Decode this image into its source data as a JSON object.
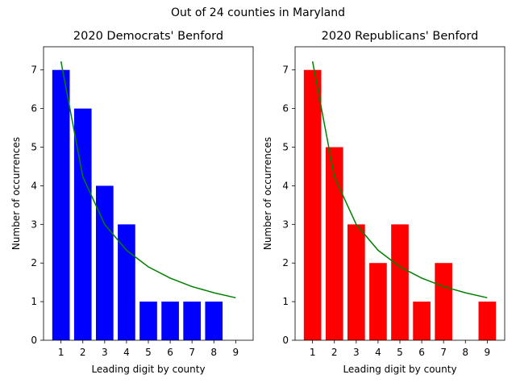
{
  "suptitle": "Out of 24 counties in Maryland",
  "chart_data": [
    {
      "type": "bar",
      "title": "2020 Democrats' Benford",
      "xlabel": "Leading digit by county",
      "ylabel": "Number of occurrences",
      "categories": [
        1,
        2,
        3,
        4,
        5,
        6,
        7,
        8,
        9
      ],
      "values": [
        7,
        6,
        4,
        3,
        1,
        1,
        1,
        1,
        0
      ],
      "bar_color": "#0000ff",
      "expected": [
        7.22,
        4.23,
        3.0,
        2.33,
        1.9,
        1.61,
        1.39,
        1.23,
        1.1
      ],
      "expected_color": "#008000",
      "xlim": [
        0.2,
        9.8
      ],
      "ylim": [
        0,
        7.6
      ],
      "yticks": [
        0,
        1,
        2,
        3,
        4,
        5,
        6,
        7
      ]
    },
    {
      "type": "bar",
      "title": "2020 Republicans' Benford",
      "xlabel": "Leading digit by county",
      "ylabel": "Number of occurrences",
      "categories": [
        1,
        2,
        3,
        4,
        5,
        6,
        7,
        8,
        9
      ],
      "values": [
        7,
        5,
        3,
        2,
        3,
        1,
        2,
        0,
        1
      ],
      "bar_color": "#ff0000",
      "expected": [
        7.22,
        4.23,
        3.0,
        2.33,
        1.9,
        1.61,
        1.39,
        1.23,
        1.1
      ],
      "expected_color": "#008000",
      "xlim": [
        0.2,
        9.8
      ],
      "ylim": [
        0,
        7.6
      ],
      "yticks": [
        0,
        1,
        2,
        3,
        4,
        5,
        6,
        7
      ]
    }
  ]
}
